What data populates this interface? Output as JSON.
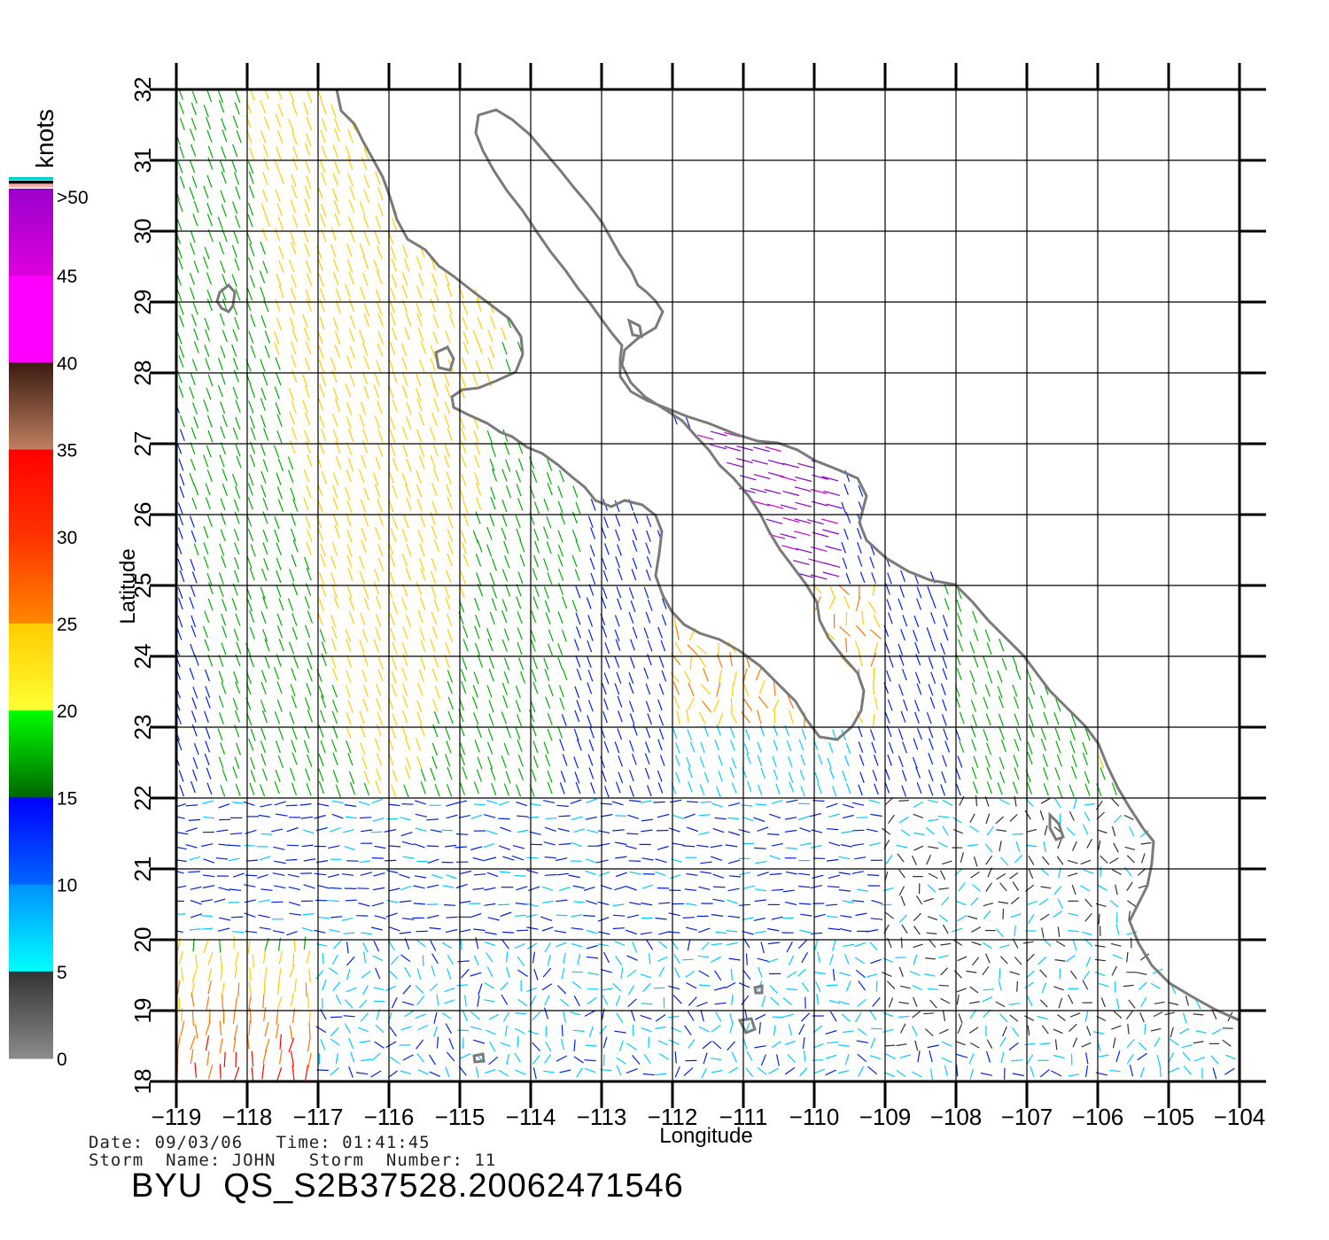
{
  "map": {
    "region": "Baja California / Gulf of California",
    "lon_range": [
      -119,
      -104
    ],
    "lat_range": [
      18,
      32
    ],
    "grid": true,
    "x_label": "Longitude",
    "y_label": "Latitude",
    "x_ticks": [
      "−119",
      "−118",
      "−117",
      "−116",
      "−115",
      "−114",
      "−113",
      "−112",
      "−111",
      "−110",
      "−109",
      "−108",
      "−107",
      "−106",
      "−105",
      "−104"
    ],
    "y_ticks": [
      "18",
      "19",
      "20",
      "21",
      "22",
      "23",
      "24",
      "25",
      "26",
      "27",
      "28",
      "29",
      "30",
      "31",
      "32"
    ],
    "coastline_color": "#7a7a7a",
    "grid_color": "#000000"
  },
  "colorbar": {
    "title": "knots",
    "tick_labels": [
      "0",
      "5",
      "10",
      "15",
      "20",
      "25",
      "30",
      "35",
      "40",
      "45",
      ">50"
    ],
    "bands": [
      {
        "range": "0-5",
        "top": "#333333",
        "bottom": "#8c8c8c"
      },
      {
        "range": "5-10",
        "top": "#0090ff",
        "bottom": "#00ffff"
      },
      {
        "range": "10-15",
        "top": "#0000ff",
        "bottom": "#0066ff"
      },
      {
        "range": "15-20",
        "top": "#00ff00",
        "bottom": "#006600"
      },
      {
        "range": "20-25",
        "top": "#ffcc00",
        "bottom": "#ffff33"
      },
      {
        "range": "25-30",
        "top": "#ff3300",
        "bottom": "#ff8800"
      },
      {
        "range": "30-35",
        "top": "#ff0000",
        "bottom": "#ff3300"
      },
      {
        "range": "35-40",
        "top": "#3a1a10",
        "bottom": "#c08060"
      },
      {
        "range": "40-45",
        "top": "#ff00ff",
        "bottom": "#ff00ff"
      },
      {
        "range": "45-50",
        "top": "#9900cc",
        "bottom": "#dd00dd"
      },
      {
        "range": ">50",
        "top": "#6600cc",
        "bottom": "#8800cc"
      }
    ],
    "top_stripes": [
      "#00cccc",
      "#000000",
      "#ffaaaa"
    ]
  },
  "wind_colors": {
    "lt5": "#303030",
    "5_10": "#00ccff",
    "10_15": "#0022dd",
    "15_20": "#00aa00",
    "20_25": "#ffcc00",
    "25_30": "#ff7700",
    "30_35": "#ff0000",
    "40_45": "#cc00cc",
    "45_50": "#8800cc"
  },
  "footer": {
    "date_line": "Date: 09/03/06   Time: 01:41:45",
    "storm_line": "Storm  Name: JOHN   Storm  Number: 11",
    "title": "BYU  QS_S2B37528.20062471546"
  }
}
